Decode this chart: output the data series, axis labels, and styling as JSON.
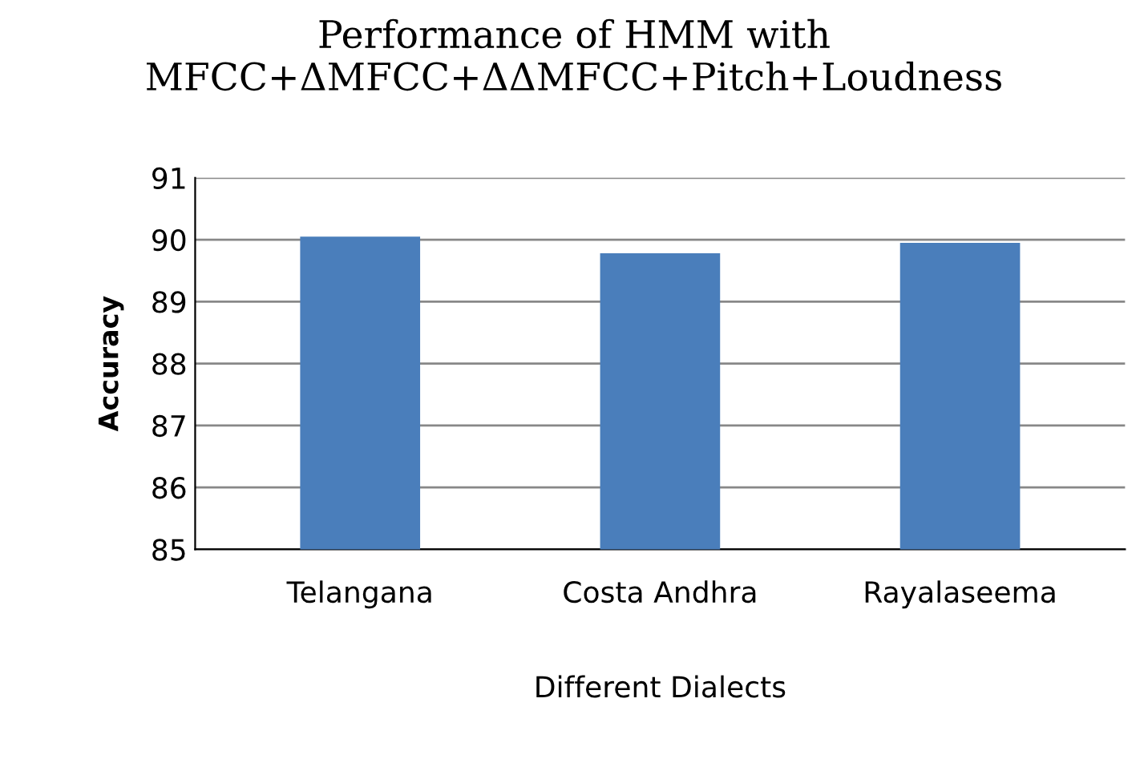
{
  "chart_data": {
    "type": "bar",
    "title": "Performance of HMM with\nMFCC+ΔMFCC+ΔΔMFCC+Pitch+Loudness",
    "xlabel": "Different Dialects",
    "ylabel": "Accuracy",
    "categories": [
      "Telangana",
      "Costa Andhra",
      "Rayalaseema"
    ],
    "values": [
      90.05,
      89.78,
      89.95
    ],
    "color": "#4a7ebb",
    "ylim": [
      85,
      91
    ],
    "yticks": [
      85,
      86,
      87,
      88,
      89,
      90,
      91
    ],
    "grid": "y"
  }
}
